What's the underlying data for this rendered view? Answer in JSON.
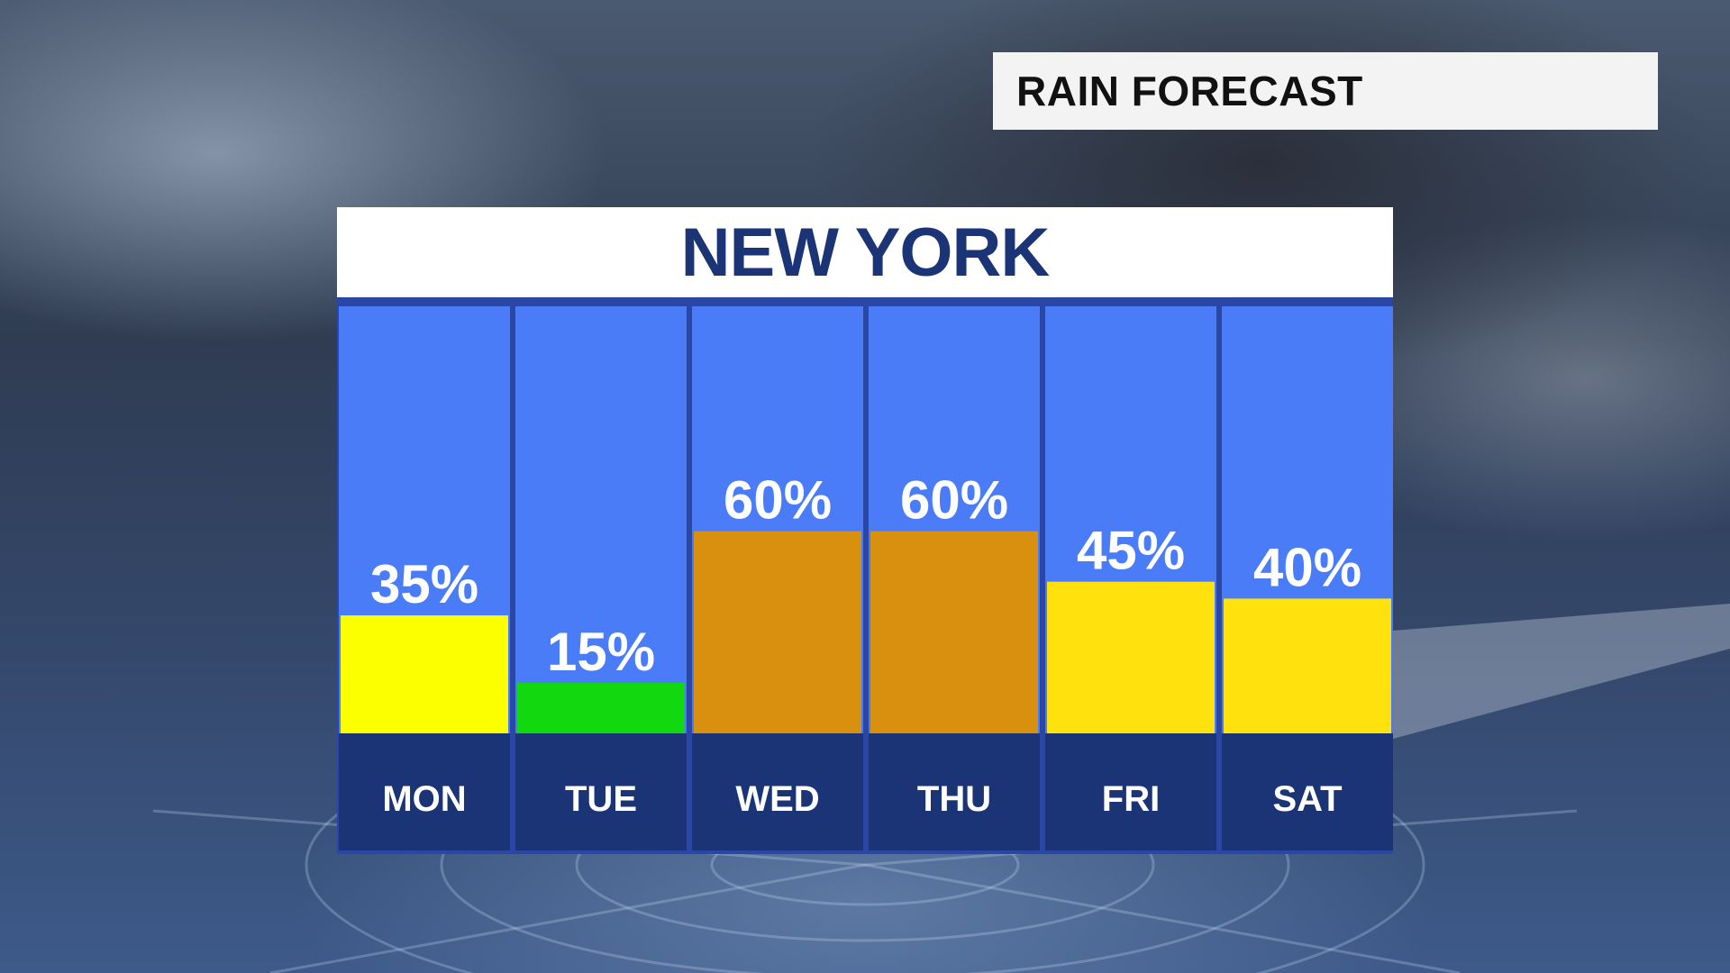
{
  "header": {
    "title": "RAIN FORECAST"
  },
  "chart_data": {
    "type": "bar",
    "title": "NEW YORK",
    "xlabel": "",
    "ylabel": "",
    "ylim": [
      0,
      100
    ],
    "grid": false,
    "categories": [
      "MON",
      "TUE",
      "WED",
      "THU",
      "FRI",
      "SAT"
    ],
    "values": [
      35,
      15,
      60,
      60,
      45,
      40
    ],
    "value_labels": [
      "35%",
      "15%",
      "60%",
      "60%",
      "45%",
      "40%"
    ],
    "bar_colors": [
      "#fbff00",
      "#12d90f",
      "#d9900e",
      "#d9900e",
      "#ffe10e",
      "#ffe10e"
    ],
    "column_color": "#4a7cf7",
    "day_band_color": "#1a3475"
  }
}
